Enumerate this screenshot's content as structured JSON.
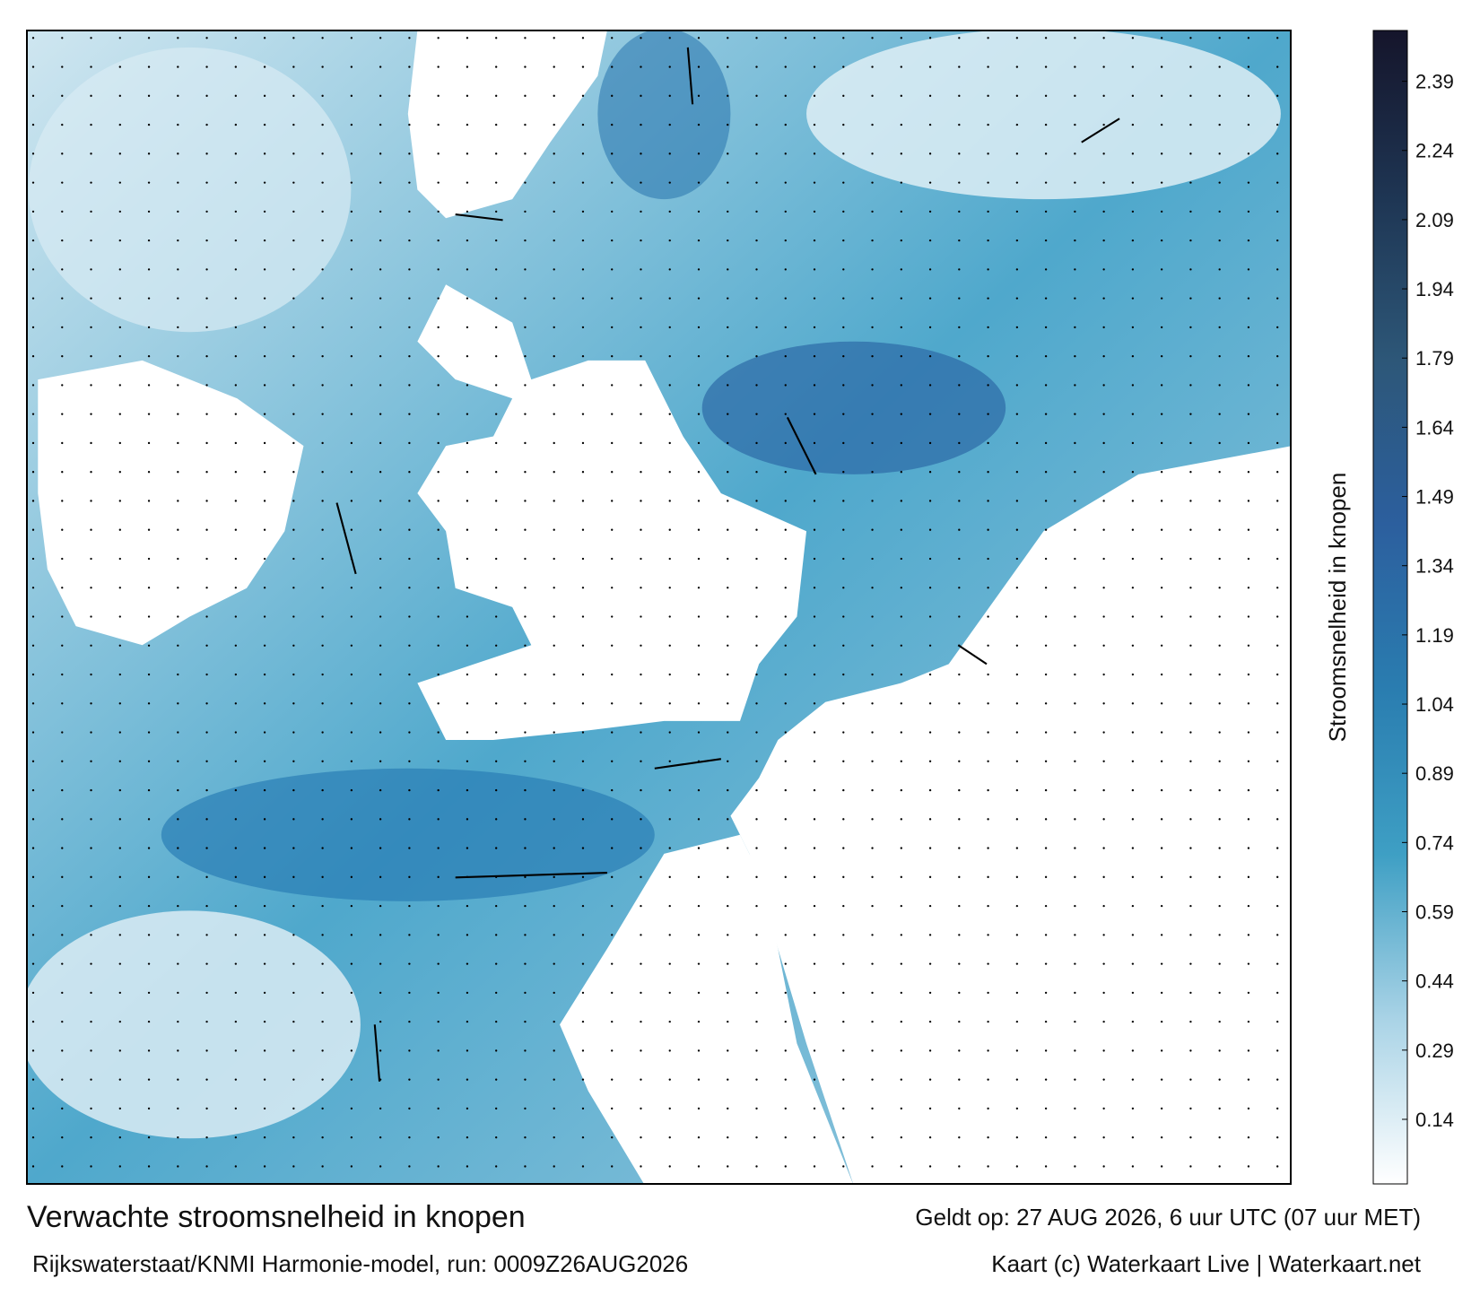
{
  "chart_data": {
    "type": "colorbar",
    "title": "Verwachte stroomsnelheid in knopen",
    "valid_time": "Geldt op: 27 AUG 2026, 6 uur UTC (07 uur MET)",
    "source": "Rijkswaterstaat/KNMI Harmonie-model, run: 0009Z26AUG2026",
    "credit": "Kaart (c) Waterkaart Live | Waterkaart.net",
    "colorbar_label": "Stroomsnelheid in knopen",
    "ylim": [
      0,
      2.5
    ],
    "yticks": [
      0.14,
      0.29,
      0.44,
      0.59,
      0.74,
      0.89,
      1.04,
      1.19,
      1.34,
      1.49,
      1.64,
      1.79,
      1.94,
      2.09,
      2.24,
      2.39
    ],
    "colorscale": [
      "#ffffff",
      "#a9d3e6",
      "#3e9fc4",
      "#2a7db0",
      "#2c5f9e",
      "#2d5778",
      "#1e3553",
      "#15152b"
    ]
  }
}
